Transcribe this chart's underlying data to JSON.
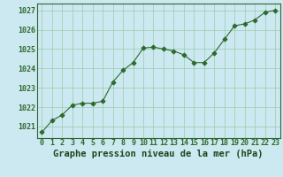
{
  "x": [
    0,
    1,
    2,
    3,
    4,
    5,
    6,
    7,
    8,
    9,
    10,
    11,
    12,
    13,
    14,
    15,
    16,
    17,
    18,
    19,
    20,
    21,
    22,
    23
  ],
  "y": [
    1020.7,
    1021.3,
    1021.6,
    1022.1,
    1022.2,
    1022.2,
    1022.3,
    1023.3,
    1023.9,
    1024.3,
    1025.05,
    1025.1,
    1025.0,
    1024.9,
    1024.7,
    1024.3,
    1024.3,
    1024.8,
    1025.5,
    1026.2,
    1026.3,
    1026.5,
    1026.9,
    1027.0
  ],
  "line_color": "#2d6a2d",
  "marker": "D",
  "bg_color": "#cce8f0",
  "grid_color": "#99ccaa",
  "xlabel": "Graphe pression niveau de la mer (hPa)",
  "xlabel_color": "#1a4a1a",
  "ylabel_ticks": [
    1021,
    1022,
    1023,
    1024,
    1025,
    1026,
    1027
  ],
  "ylim": [
    1020.4,
    1027.35
  ],
  "xlim": [
    -0.5,
    23.5
  ],
  "tick_color": "#2d6a2d",
  "spine_color": "#336633",
  "label_fontsize": 6.0,
  "xlabel_fontsize": 7.5,
  "markersize": 2.5,
  "linewidth": 0.8
}
